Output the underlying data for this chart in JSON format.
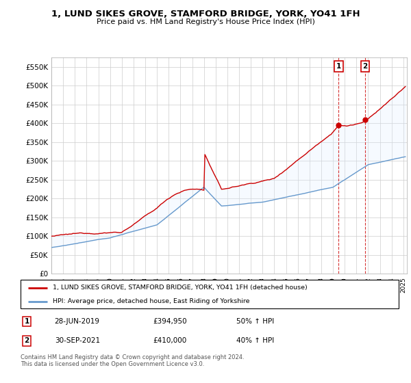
{
  "title": "1, LUND SIKES GROVE, STAMFORD BRIDGE, YORK, YO41 1FH",
  "subtitle": "Price paid vs. HM Land Registry's House Price Index (HPI)",
  "legend_line1": "1, LUND SIKES GROVE, STAMFORD BRIDGE, YORK, YO41 1FH (detached house)",
  "legend_line2": "HPI: Average price, detached house, East Riding of Yorkshire",
  "transaction1_date": "28-JUN-2019",
  "transaction1_price": "£394,950",
  "transaction1_hpi": "50% ↑ HPI",
  "transaction2_date": "30-SEP-2021",
  "transaction2_price": "£410,000",
  "transaction2_hpi": "40% ↑ HPI",
  "footer": "Contains HM Land Registry data © Crown copyright and database right 2024.\nThis data is licensed under the Open Government Licence v3.0.",
  "red_color": "#cc0000",
  "blue_color": "#6699cc",
  "blue_fill_color": "#ddeeff",
  "grid_color": "#cccccc",
  "ylim": [
    0,
    575000
  ],
  "yticks": [
    0,
    50000,
    100000,
    150000,
    200000,
    250000,
    300000,
    350000,
    400000,
    450000,
    500000,
    550000
  ],
  "ytick_labels": [
    "£0",
    "£50K",
    "£100K",
    "£150K",
    "£200K",
    "£250K",
    "£300K",
    "£350K",
    "£400K",
    "£450K",
    "£500K",
    "£550K"
  ],
  "sale1_year": 2019.49,
  "sale1_price": 394950,
  "sale2_year": 2021.75,
  "sale2_price": 410000
}
